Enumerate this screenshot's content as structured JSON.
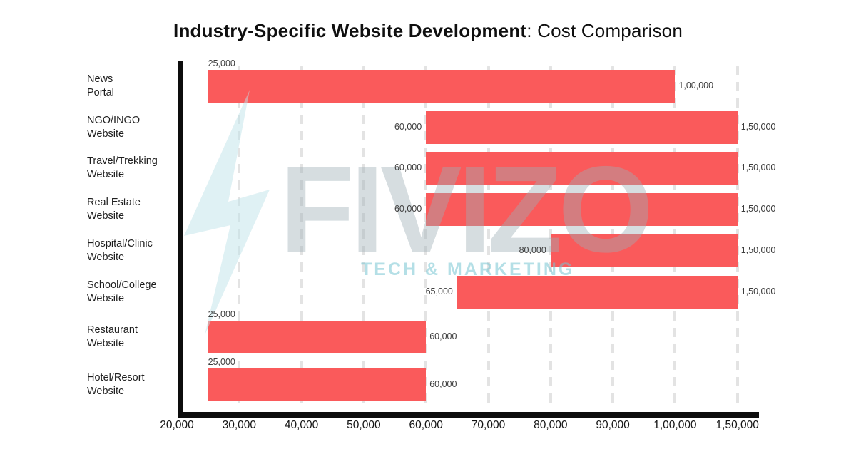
{
  "page": {
    "background": "#ffffff"
  },
  "title": {
    "bold": "Industry-Specific Website Development",
    "regular": ": Cost Comparison"
  },
  "watermark": {
    "brand": "FIVIZO",
    "tagline": "TECH & MARKETING",
    "bolt_icon": "lightning-bolt-icon",
    "brand_color": "#CDD5D9",
    "tagline_color": "#BFE4EA",
    "bolt_color": "#D9EFF2"
  },
  "colors": {
    "bar": "#FA5A5B",
    "axis": "#0d0d0d",
    "gridline": "#e3e3e3",
    "tick_label": "#141414",
    "category_label": "#1f1f1f",
    "value_label": "#3d3d3d"
  },
  "chart_data": {
    "type": "bar",
    "variant": "horizontal-range-bars",
    "title": "Industry-Specific Website Development: Cost Comparison",
    "xlabel": "",
    "ylabel": "",
    "legend": "none",
    "grid": "vertical dashed gridlines at each x tick",
    "x_axis": {
      "tick_labels": [
        "20,000",
        "30,000",
        "40,000",
        "50,000",
        "60,000",
        "70,000",
        "80,000",
        "90,000",
        "1,00,000",
        "1,50,000"
      ],
      "tick_values": [
        20000,
        30000,
        40000,
        50000,
        60000,
        70000,
        80000,
        90000,
        100000,
        150000
      ],
      "scale_note": "ticks are equally spaced on screen; the last interval jumps from 1,00,000 to 1,50,000"
    },
    "categories": [
      "News Portal",
      "NGO/INGO Website",
      "Travel/Trekking Website",
      "Real Estate Website",
      "Hospital/Clinic Website",
      "School/College Website",
      "Restaurant Website",
      "Hotel/Resort Website"
    ],
    "rows": [
      {
        "category_lines": [
          "News",
          "Portal"
        ],
        "min_value": 25000,
        "max_value": 100000,
        "min_label": "25,000",
        "max_label": "1,00,000",
        "min_label_position": "above"
      },
      {
        "category_lines": [
          "NGO/INGO",
          "Website"
        ],
        "min_value": 60000,
        "max_value": 150000,
        "min_label": "60,000",
        "max_label": "1,50,000",
        "min_label_position": "left"
      },
      {
        "category_lines": [
          "Travel/Trekking",
          "Website"
        ],
        "min_value": 60000,
        "max_value": 150000,
        "min_label": "60,000",
        "max_label": "1,50,000",
        "min_label_position": "left"
      },
      {
        "category_lines": [
          "Real Estate",
          "Website"
        ],
        "min_value": 60000,
        "max_value": 150000,
        "min_label": "60,000",
        "max_label": "1,50,000",
        "min_label_position": "left"
      },
      {
        "category_lines": [
          "Hospital/Clinic",
          "Website"
        ],
        "min_value": 80000,
        "max_value": 150000,
        "min_label": "80,000",
        "max_label": "1,50,000",
        "min_label_position": "left"
      },
      {
        "category_lines": [
          "School/College",
          "Website"
        ],
        "min_value": 65000,
        "max_value": 150000,
        "min_label": "65,000",
        "max_label": "1,50,000",
        "min_label_position": "left"
      },
      {
        "category_lines": [
          "Restaurant",
          "Website"
        ],
        "min_value": 25000,
        "max_value": 60000,
        "min_label": "25,000",
        "max_label": "60,000",
        "min_label_position": "above"
      },
      {
        "category_lines": [
          "Hotel/Resort",
          "Website"
        ],
        "min_value": 25000,
        "max_value": 60000,
        "min_label": "25,000",
        "max_label": "60,000",
        "min_label_position": "above"
      }
    ]
  }
}
